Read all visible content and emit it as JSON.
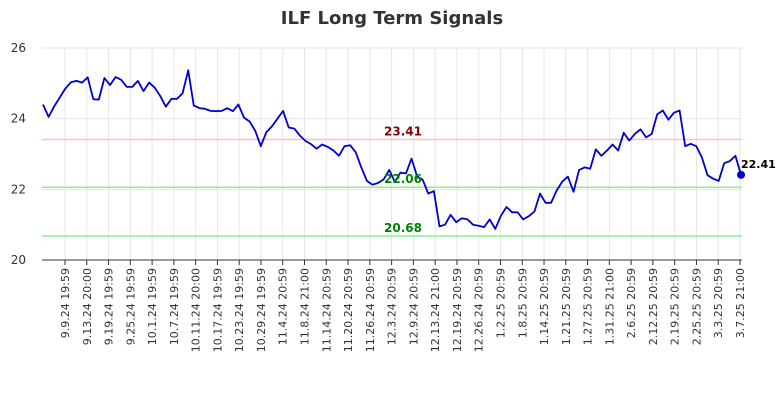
{
  "chart_data": {
    "type": "line",
    "title": "ILF Long Term Signals",
    "xlabel": "",
    "ylabel": "",
    "ylim": [
      20,
      26
    ],
    "yticks": [
      20,
      22,
      24,
      26
    ],
    "grid": true,
    "x_ticks": [
      "9.9.24 19:59",
      "9.13.24 20:00",
      "9.19.24 19:59",
      "9.25.24 19:59",
      "10.1.24 19:59",
      "10.7.24 19:59",
      "10.11.24 20:00",
      "10.17.24 19:59",
      "10.23.24 19:59",
      "10.29.24 19:59",
      "11.4.24 20:59",
      "11.8.24 21:00",
      "11.14.24 20:59",
      "11.20.24 20:59",
      "11.26.24 20:59",
      "12.3.24 20:59",
      "12.9.24 20:59",
      "12.13.24 21:00",
      "12.19.24 20:59",
      "12.26.24 20:59",
      "1.2.25 20:59",
      "1.8.25 20:59",
      "1.14.25 20:59",
      "1.21.25 20:59",
      "1.27.25 20:59",
      "1.31.25 21:00",
      "2.6.25 20:59",
      "2.12.25 20:59",
      "2.19.25 20:59",
      "2.25.25 20:59",
      "3.3.25 20:59",
      "3.7.25 21:00"
    ],
    "series": [
      {
        "color": "#0000cc",
        "values": [
          24.4,
          24.05,
          24.35,
          24.6,
          24.85,
          25.03,
          25.07,
          25.02,
          25.17,
          24.55,
          24.54,
          25.15,
          24.95,
          25.18,
          25.1,
          24.9,
          24.9,
          25.07,
          24.78,
          25.02,
          24.88,
          24.64,
          24.34,
          24.56,
          24.56,
          24.72,
          25.37,
          24.37,
          24.3,
          24.28,
          24.22,
          24.21,
          24.22,
          24.3,
          24.21,
          24.4,
          24.03,
          23.92,
          23.66,
          23.22,
          23.62,
          23.78,
          24.0,
          24.22,
          23.75,
          23.72,
          23.52,
          23.37,
          23.28,
          23.15,
          23.27,
          23.2,
          23.1,
          22.95,
          23.22,
          23.25,
          23.05,
          22.62,
          22.24,
          22.13,
          22.18,
          22.28,
          22.55,
          22.21,
          22.47,
          22.45,
          22.87,
          22.37,
          22.27,
          21.88,
          21.95,
          20.95,
          21.0,
          21.28,
          21.07,
          21.18,
          21.15,
          21.0,
          20.97,
          20.93,
          21.15,
          20.88,
          21.25,
          21.5,
          21.35,
          21.35,
          21.15,
          21.24,
          21.37,
          21.88,
          21.62,
          21.62,
          21.97,
          22.22,
          22.36,
          21.93,
          22.55,
          22.62,
          22.58,
          23.13,
          22.95,
          23.1,
          23.27,
          23.1,
          23.6,
          23.38,
          23.57,
          23.7,
          23.47,
          23.57,
          24.12,
          24.23,
          23.97,
          24.17,
          24.23,
          23.22,
          23.29,
          23.22,
          22.9,
          22.4,
          22.3,
          22.24,
          22.74,
          22.8,
          22.95,
          22.41
        ]
      }
    ],
    "levels": [
      {
        "value": 23.41,
        "label": "23.41",
        "line_color": "#ffbfbf",
        "label_color": "#8b0000"
      },
      {
        "value": 22.06,
        "label": "22.06",
        "line_color": "#90ee90",
        "label_color": "#008000"
      },
      {
        "value": 20.68,
        "label": "20.68",
        "line_color": "#90ee90",
        "label_color": "#008000"
      }
    ],
    "last_value_label": "22.41"
  }
}
